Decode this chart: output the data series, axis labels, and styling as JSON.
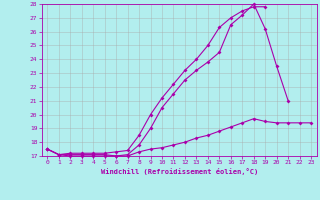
{
  "bg_color": "#b2eeee",
  "line_color": "#aa00aa",
  "grid_color": "#aaaaaa",
  "xlim": [
    -0.5,
    23.5
  ],
  "ylim": [
    17,
    28
  ],
  "xticks": [
    0,
    1,
    2,
    3,
    4,
    5,
    6,
    7,
    8,
    9,
    10,
    11,
    12,
    13,
    14,
    15,
    16,
    17,
    18,
    19,
    20,
    21,
    22,
    23
  ],
  "yticks": [
    17,
    18,
    19,
    20,
    21,
    22,
    23,
    24,
    25,
    26,
    27,
    28
  ],
  "xlabel": "Windchill (Refroidissement éolien,°C)",
  "line1_x": [
    0,
    1,
    2,
    3,
    4,
    5,
    6,
    7,
    8,
    9,
    10,
    11,
    12,
    13,
    14,
    15,
    16,
    17,
    18,
    19,
    20,
    21,
    22,
    23
  ],
  "line1_y": [
    17.5,
    17.1,
    17.0,
    17.0,
    17.0,
    17.0,
    17.0,
    17.0,
    17.3,
    17.5,
    17.6,
    17.8,
    18.0,
    18.3,
    18.5,
    18.8,
    19.1,
    19.4,
    19.7,
    19.5,
    19.4,
    19.4,
    19.4,
    19.4
  ],
  "line2_x": [
    0,
    1,
    2,
    3,
    4,
    5,
    6,
    7,
    8,
    9,
    10,
    11,
    12,
    13,
    14,
    15,
    16,
    17,
    18,
    19,
    20,
    21,
    22,
    23
  ],
  "line2_y": [
    17.5,
    17.1,
    17.1,
    17.1,
    17.1,
    17.1,
    17.0,
    17.1,
    17.8,
    19.0,
    20.5,
    21.5,
    22.5,
    23.2,
    23.8,
    24.5,
    26.5,
    27.2,
    28.0,
    26.2,
    23.5,
    21.0,
    null,
    null
  ],
  "line3_x": [
    0,
    1,
    2,
    3,
    4,
    5,
    6,
    7,
    8,
    9,
    10,
    11,
    12,
    13,
    14,
    15,
    16,
    17,
    18,
    19,
    20,
    21,
    22,
    23
  ],
  "line3_y": [
    17.5,
    17.1,
    17.2,
    17.2,
    17.2,
    17.2,
    17.3,
    17.4,
    18.5,
    20.0,
    21.2,
    22.2,
    23.2,
    24.0,
    25.0,
    26.3,
    27.0,
    27.5,
    27.8,
    27.8,
    null,
    null,
    null,
    null
  ]
}
